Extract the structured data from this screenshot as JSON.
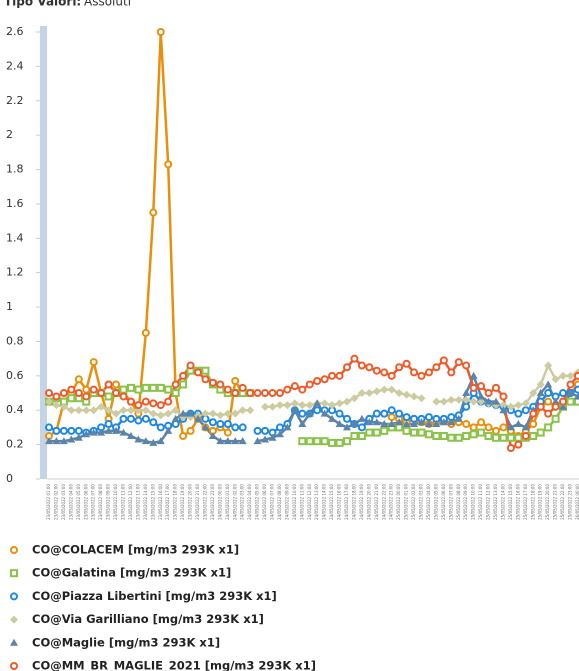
{
  "header": {
    "label": "Tipo Valori:",
    "value": "Assoluti"
  },
  "chart_data": {
    "type": "line",
    "categories": [
      "23/05/2022 01:00",
      "23/05/2022 02:00",
      "23/05/2022 03:00",
      "23/05/2022 04:00",
      "23/05/2022 05:00",
      "23/05/2022 06:00",
      "23/05/2022 07:00",
      "23/05/2022 08:00",
      "23/05/2022 09:00",
      "23/05/2022 10:00",
      "23/05/2022 11:00",
      "23/05/2022 12:00",
      "23/05/2022 13:00",
      "23/05/2022 14:00",
      "23/05/2022 15:00",
      "23/05/2022 16:00",
      "23/05/2022 17:00",
      "23/05/2022 18:00",
      "23/05/2022 19:00",
      "23/05/2022 20:00",
      "23/05/2022 21:00",
      "23/05/2022 22:00",
      "23/05/2022 23:00",
      "24/05/2022 00:00",
      "24/05/2022 01:00",
      "24/05/2022 02:00",
      "24/05/2022 03:00",
      "24/05/2022 04:00",
      "24/05/2022 05:00",
      "24/05/2022 06:00",
      "24/05/2022 07:00",
      "24/05/2022 08:00",
      "24/05/2022 09:00",
      "24/05/2022 10:00",
      "24/05/2022 11:00",
      "24/05/2022 12:00",
      "24/05/2022 13:00",
      "24/05/2022 14:00",
      "24/05/2022 15:00",
      "24/05/2022 16:00",
      "24/05/2022 17:00",
      "24/05/2022 18:00",
      "24/05/2022 19:00",
      "24/05/2022 20:00",
      "24/05/2022 21:00",
      "24/05/2022 22:00",
      "24/05/2022 23:00",
      "25/05/2022 00:00",
      "25/05/2022 01:00",
      "25/05/2022 02:00",
      "25/05/2022 03:00",
      "25/05/2022 04:00",
      "25/05/2022 05:00",
      "25/05/2022 06:00",
      "25/05/2022 07:00",
      "25/05/2022 08:00",
      "25/05/2022 09:00",
      "25/05/2022 10:00",
      "25/05/2022 11:00",
      "25/05/2022 12:00",
      "25/05/2022 13:00",
      "25/05/2022 14:00",
      "25/05/2022 15:00",
      "25/05/2022 16:00",
      "25/05/2022 17:00",
      "25/05/2022 18:00",
      "25/05/2022 19:00",
      "25/05/2022 20:00",
      "25/05/2022 21:00",
      "25/05/2022 22:00",
      "25/05/2022 23:00",
      "26/05/2022 00:00"
    ],
    "ylim": [
      0,
      2.6
    ],
    "yticks": [
      0,
      0.2,
      0.4,
      0.6,
      0.8,
      1,
      1.2,
      1.4,
      1.6,
      1.8,
      2,
      2.2,
      2.4,
      2.6
    ],
    "series": [
      {
        "name": "CO@COLACEM [mg/m3 293K x1]",
        "color": "#e8900c",
        "marker": "circle",
        "values": [
          0.25,
          0.28,
          0.45,
          0.5,
          0.58,
          0.52,
          0.68,
          0.5,
          0.35,
          0.55,
          0.5,
          0.45,
          0.38,
          0.85,
          1.55,
          2.6,
          1.83,
          0.5,
          0.25,
          0.28,
          0.35,
          0.3,
          0.28,
          0.3,
          0.27,
          0.57,
          0.5,
          null,
          null,
          null,
          null,
          null,
          null,
          null,
          null,
          null,
          null,
          null,
          null,
          null,
          null,
          null,
          null,
          0.35,
          0.38,
          0.38,
          0.36,
          0.35,
          0.33,
          0.35,
          0.33,
          0.32,
          0.33,
          0.35,
          0.32,
          0.33,
          0.32,
          0.3,
          0.33,
          0.3,
          0.28,
          0.3,
          0.28,
          0.25,
          0.28,
          0.32,
          0.42,
          0.45,
          0.42,
          0.45,
          0.5,
          0.55
        ]
      },
      {
        "name": "CO@Galatina [mg/m3 293K x1]",
        "color": "#8bc34a",
        "marker": "square",
        "values": [
          0.45,
          0.47,
          0.45,
          0.47,
          0.47,
          0.45,
          0.5,
          0.5,
          0.48,
          0.5,
          0.52,
          0.53,
          0.52,
          0.53,
          0.53,
          0.53,
          0.52,
          0.5,
          0.55,
          0.63,
          0.63,
          0.63,
          0.55,
          0.52,
          0.5,
          0.5,
          0.5,
          0.5,
          null,
          null,
          null,
          null,
          null,
          null,
          0.22,
          0.22,
          0.22,
          0.22,
          0.21,
          0.21,
          0.22,
          0.25,
          0.25,
          0.27,
          0.27,
          0.28,
          0.3,
          0.3,
          0.28,
          0.27,
          0.27,
          0.26,
          0.25,
          0.25,
          0.24,
          0.24,
          0.25,
          0.26,
          0.27,
          0.25,
          0.24,
          0.24,
          0.24,
          0.24,
          0.24,
          0.25,
          0.27,
          0.3,
          0.35,
          0.42,
          0.45,
          0.45
        ]
      },
      {
        "name": "CO@Piazza Libertini [mg/m3 293K x1]",
        "color": "#1e88e5",
        "marker": "circle",
        "values": [
          0.3,
          0.28,
          0.28,
          0.28,
          0.28,
          0.27,
          0.28,
          0.3,
          0.32,
          0.3,
          0.35,
          0.35,
          0.34,
          0.35,
          0.33,
          0.3,
          0.31,
          0.32,
          0.35,
          0.38,
          0.38,
          0.35,
          0.33,
          0.32,
          0.32,
          0.3,
          0.3,
          null,
          0.28,
          0.28,
          0.27,
          0.3,
          0.32,
          0.4,
          0.38,
          0.38,
          0.4,
          0.4,
          0.4,
          0.38,
          0.35,
          0.32,
          0.3,
          0.35,
          0.38,
          0.38,
          0.4,
          0.38,
          0.36,
          0.35,
          0.35,
          0.36,
          0.35,
          0.35,
          0.36,
          0.37,
          0.42,
          0.5,
          0.45,
          0.44,
          0.43,
          0.42,
          0.4,
          0.38,
          0.4,
          0.42,
          0.45,
          0.5,
          0.48,
          0.5,
          0.5,
          0.52
        ]
      },
      {
        "name": "CO@Via Garilliano [mg/m3 293K x1]",
        "color": "#cdcba0",
        "marker": "diamond",
        "values": [
          0.45,
          0.43,
          0.42,
          0.4,
          0.4,
          0.4,
          0.4,
          0.42,
          0.4,
          0.38,
          0.4,
          0.4,
          0.4,
          0.4,
          0.38,
          0.37,
          0.38,
          0.4,
          0.36,
          0.36,
          0.37,
          0.38,
          0.38,
          0.37,
          0.38,
          0.38,
          0.4,
          0.4,
          null,
          0.42,
          0.42,
          0.43,
          0.43,
          0.44,
          0.43,
          0.43,
          0.44,
          0.44,
          0.43,
          0.44,
          0.45,
          0.47,
          0.5,
          0.5,
          0.51,
          0.52,
          0.52,
          0.5,
          0.49,
          0.48,
          0.47,
          null,
          0.45,
          0.45,
          0.46,
          0.46,
          0.46,
          0.45,
          0.45,
          0.44,
          0.43,
          0.43,
          0.42,
          0.43,
          0.44,
          0.5,
          0.55,
          0.66,
          0.58,
          0.6,
          0.6,
          0.62
        ]
      },
      {
        "name": "CO@Maglie [mg/m3 293K x1]",
        "color": "#5b84a8",
        "marker": "triangle",
        "values": [
          0.22,
          0.22,
          0.22,
          0.23,
          0.24,
          0.26,
          0.27,
          0.27,
          0.28,
          0.28,
          0.27,
          0.25,
          0.23,
          0.22,
          0.21,
          0.22,
          0.28,
          0.35,
          0.38,
          0.38,
          0.35,
          0.3,
          0.25,
          0.22,
          0.22,
          0.22,
          0.22,
          null,
          0.22,
          0.23,
          0.24,
          0.26,
          0.3,
          0.4,
          0.32,
          0.38,
          0.44,
          0.38,
          0.35,
          0.32,
          0.3,
          0.32,
          0.35,
          0.33,
          0.33,
          0.32,
          0.32,
          0.33,
          0.32,
          0.32,
          0.33,
          0.32,
          0.32,
          0.33,
          0.33,
          0.35,
          0.5,
          0.6,
          0.48,
          0.45,
          0.45,
          0.4,
          0.3,
          0.32,
          0.3,
          0.4,
          0.5,
          0.55,
          0.45,
          0.42,
          0.5,
          0.48
        ]
      },
      {
        "name": "CO@MM_BR_MAGLIE_2021 [mg/m3 293K x1]",
        "color": "#f05a28",
        "marker": "circle",
        "values": [
          0.5,
          0.48,
          0.5,
          0.52,
          0.5,
          0.48,
          0.52,
          0.5,
          0.55,
          0.5,
          0.48,
          0.45,
          0.43,
          0.45,
          0.44,
          0.43,
          0.45,
          0.55,
          0.6,
          0.66,
          0.62,
          0.58,
          0.56,
          0.55,
          0.52,
          0.5,
          0.53,
          0.5,
          0.5,
          0.5,
          0.5,
          0.5,
          0.52,
          0.54,
          0.52,
          0.55,
          0.57,
          0.58,
          0.6,
          0.6,
          0.65,
          0.7,
          0.66,
          0.65,
          0.63,
          0.62,
          0.6,
          0.65,
          0.67,
          0.62,
          0.6,
          0.62,
          0.65,
          0.69,
          0.62,
          0.68,
          0.66,
          0.53,
          0.54,
          0.5,
          0.53,
          0.48,
          0.18,
          0.2,
          0.25,
          0.38,
          0.42,
          0.38,
          0.42,
          0.45,
          0.55,
          0.6
        ]
      }
    ]
  }
}
